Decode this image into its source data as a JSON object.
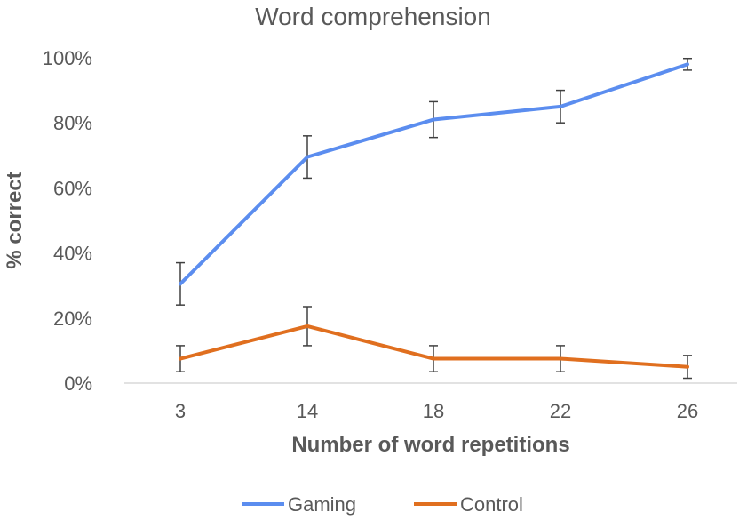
{
  "chart_data": {
    "type": "line",
    "title": "Word comprehension",
    "xlabel": "Number of word repetitions",
    "ylabel": "% correct",
    "categories": [
      "3",
      "14",
      "18",
      "22",
      "26"
    ],
    "ylim": [
      0,
      100
    ],
    "yticks": [
      "0%",
      "20%",
      "40%",
      "60%",
      "80%",
      "100%"
    ],
    "grid": false,
    "legend_position": "bottom",
    "series": [
      {
        "name": "Gaming",
        "color": "#5B8DEF",
        "values": [
          30.5,
          69.5,
          81,
          85,
          98
        ],
        "error": [
          6.5,
          6.5,
          5.5,
          5,
          1.8
        ]
      },
      {
        "name": "Control",
        "color": "#E06F1F",
        "values": [
          7.5,
          17.5,
          7.5,
          7.5,
          5
        ],
        "error": [
          4,
          6,
          4,
          4,
          3.5
        ]
      }
    ]
  }
}
